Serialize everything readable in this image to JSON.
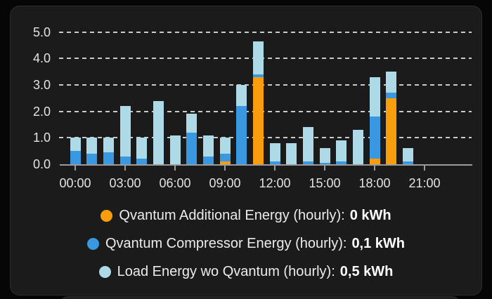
{
  "app": {
    "page_background": "#060606",
    "card_background": "#1b1b1b"
  },
  "chart_data": {
    "type": "bar",
    "stacked": true,
    "title": "",
    "xlabel": "",
    "ylabel": "",
    "unit": "kWh",
    "grid": "horizontal-dashed",
    "legend_position": "bottom",
    "categories": [
      "00:00",
      "01:00",
      "02:00",
      "03:00",
      "04:00",
      "05:00",
      "06:00",
      "07:00",
      "08:00",
      "09:00",
      "10:00",
      "11:00",
      "12:00",
      "13:00",
      "14:00",
      "15:00",
      "16:00",
      "17:00",
      "18:00",
      "19:00",
      "20:00",
      "21:00",
      "22:00",
      "23:00"
    ],
    "x_tick_labels": [
      "00:00",
      "03:00",
      "06:00",
      "09:00",
      "12:00",
      "15:00",
      "18:00",
      "21:00"
    ],
    "y_ticks": [
      0,
      1,
      2,
      3,
      4,
      5
    ],
    "y_tick_labels": [
      "0.0",
      "1.0",
      "2.0",
      "3.0",
      "4.0",
      "5.0"
    ],
    "ylim": [
      0,
      5.3
    ],
    "xlim_hours": [
      0,
      24
    ],
    "series": [
      {
        "name": "Qvantum Additional Energy (hourly)",
        "color": "#F89E0D",
        "values": [
          0,
          0,
          0,
          0,
          0,
          0,
          0,
          0,
          0,
          0.1,
          0,
          3.3,
          0,
          0,
          0,
          0,
          0,
          0,
          0.2,
          2.5,
          0,
          0,
          0,
          0
        ]
      },
      {
        "name": "Qvantum Compressor Energy (hourly)",
        "color": "#3998DF",
        "values": [
          0.5,
          0.4,
          0.45,
          0.3,
          0.2,
          0,
          0,
          1.2,
          0.3,
          0.3,
          2.2,
          0.1,
          0.1,
          0,
          0.1,
          0.05,
          0.1,
          0,
          1.6,
          0.2,
          0.1,
          0,
          0,
          0
        ]
      },
      {
        "name": "Load Energy wo Qvantum (hourly)",
        "color": "#AED9E6",
        "values": [
          0.5,
          0.6,
          0.55,
          1.9,
          0.8,
          2.4,
          1.1,
          0.7,
          0.8,
          0.6,
          0.8,
          1.25,
          0.7,
          0.8,
          1.3,
          0.55,
          0.8,
          1.3,
          1.5,
          0.8,
          0.5,
          0,
          0,
          0
        ]
      }
    ]
  },
  "legend": {
    "items": [
      {
        "label": "Qvantum Additional Energy (hourly):",
        "value": "0 kWh",
        "color": "#F89E0D"
      },
      {
        "label": "Qvantum Compressor Energy (hourly):",
        "value": "0,1 kWh",
        "color": "#3998DF"
      },
      {
        "label": "Load Energy wo Qvantum (hourly):",
        "value": "0,5 kWh",
        "color": "#AED9E6"
      }
    ]
  },
  "colors": {
    "gridline": "#cbcbcb",
    "axis": "#9b9b9b",
    "axis_label": "#e3e3e3",
    "legend_text": "#ececec",
    "legend_value": "#ffffff"
  }
}
